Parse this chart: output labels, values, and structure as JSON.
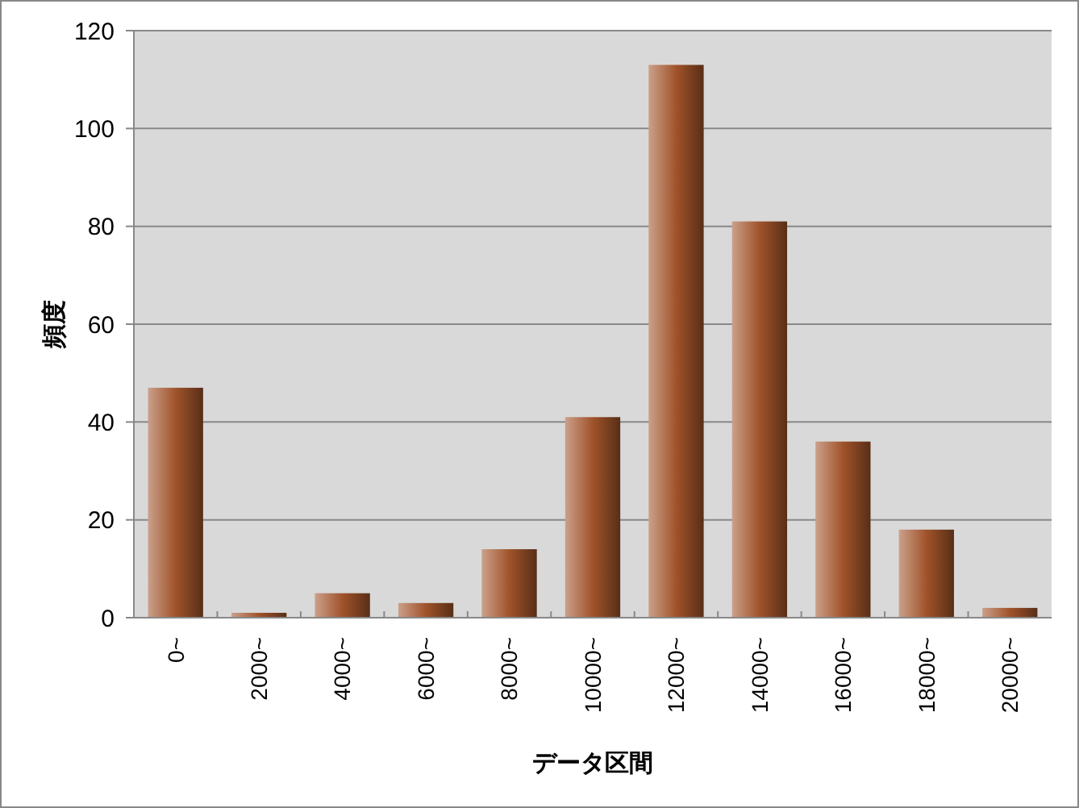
{
  "chart_data": {
    "type": "bar",
    "xlabel": "データ区間",
    "ylabel": "頻度",
    "categories": [
      "0~",
      "2000~",
      "4000~",
      "6000~",
      "8000~",
      "10000~",
      "12000~",
      "14000~",
      "16000~",
      "18000~",
      "20000~"
    ],
    "values": [
      47,
      1,
      5,
      3,
      14,
      41,
      113,
      81,
      36,
      18,
      2
    ],
    "color": "#a0532a",
    "ylim": [
      0,
      120
    ],
    "yticks": [
      0,
      20,
      40,
      60,
      80,
      100,
      120
    ],
    "grid": "y"
  }
}
